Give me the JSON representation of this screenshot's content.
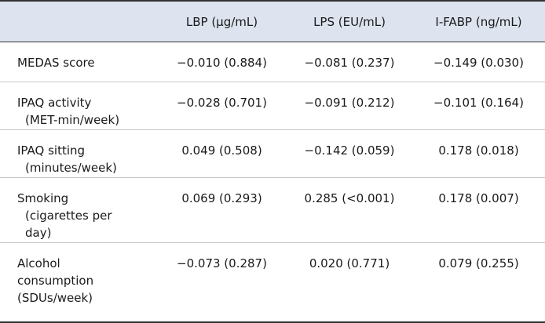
{
  "table": {
    "columns": [
      "LBP (μg/mL)",
      "LPS (EU/mL)",
      "I-FABP (ng/mL)"
    ],
    "rows": [
      {
        "label": [
          "MEDAS score"
        ],
        "values": [
          "−0.010 (0.884)",
          "−0.081 (0.237)",
          "−0.149 (0.030)"
        ]
      },
      {
        "label": [
          "IPAQ activity",
          "(MET-min/week)"
        ],
        "values": [
          "−0.028 (0.701)",
          "−0.091 (0.212)",
          "−0.101 (0.164)"
        ]
      },
      {
        "label": [
          "IPAQ sitting",
          "(minutes/week)"
        ],
        "values": [
          "0.049 (0.508)",
          "−0.142 (0.059)",
          "0.178 (0.018)"
        ]
      },
      {
        "label": [
          "Smoking",
          "(cigarettes per",
          "day)"
        ],
        "values": [
          "0.069 (0.293)",
          "0.285 (<0.001)",
          "0.178 (0.007)"
        ]
      },
      {
        "label": [
          "Alcohol",
          "consumption",
          "(SDUs/week)"
        ],
        "values": [
          "−0.073 (0.287)",
          "0.020 (0.771)",
          "0.079 (0.255)"
        ]
      }
    ]
  }
}
